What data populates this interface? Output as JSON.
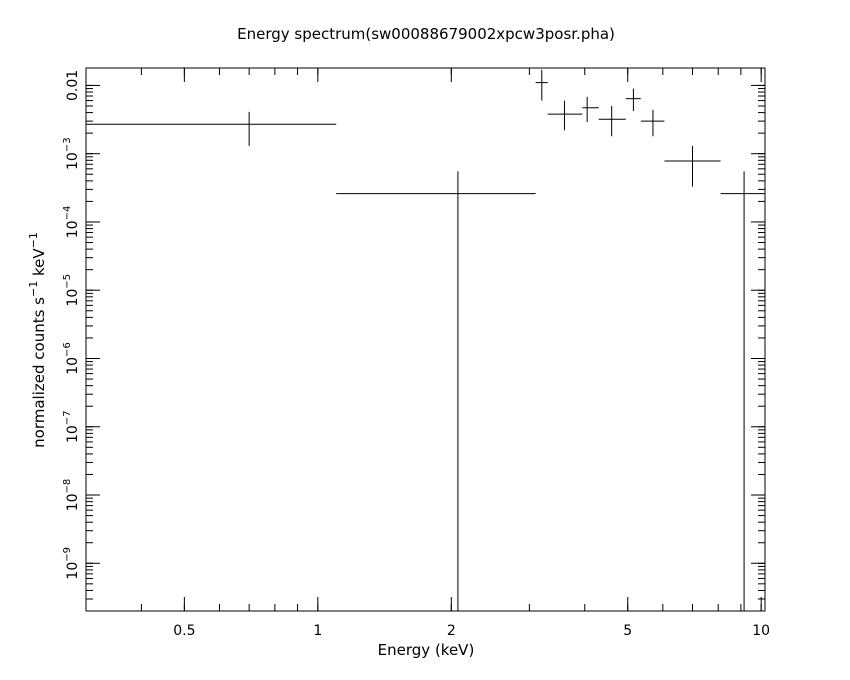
{
  "chart_data": {
    "type": "scatter",
    "title": "Energy spectrum(sw00088679002xpcw3posr.pha)",
    "xlabel": "Energy (keV)",
    "ylabel": {
      "main": "normalized counts s",
      "exp1": "−1",
      "mid": " keV",
      "exp2": "−1"
    },
    "x_scale": "log",
    "y_scale": "log",
    "xlim": [
      0.3,
      10.2
    ],
    "ylim": [
      2e-10,
      0.018
    ],
    "x_ticks": [
      {
        "value": 0.5,
        "label": "0.5"
      },
      {
        "value": 1,
        "label": "1"
      },
      {
        "value": 2,
        "label": "2"
      },
      {
        "value": 5,
        "label": "5"
      },
      {
        "value": 10,
        "label": "10"
      }
    ],
    "y_ticks": [
      {
        "value": 0.01,
        "base": "0.01",
        "exp": ""
      },
      {
        "value": 0.001,
        "base": "10",
        "exp": "−3"
      },
      {
        "value": 0.0001,
        "base": "10",
        "exp": "−4"
      },
      {
        "value": 1e-05,
        "base": "10",
        "exp": "−5"
      },
      {
        "value": 1e-06,
        "base": "10",
        "exp": "−6"
      },
      {
        "value": 1e-07,
        "base": "10",
        "exp": "−7"
      },
      {
        "value": 1e-08,
        "base": "10",
        "exp": "−8"
      },
      {
        "value": 1e-09,
        "base": "10",
        "exp": "−9"
      }
    ],
    "points": [
      {
        "x": 0.7,
        "xlo": 0.3,
        "xhi": 1.1,
        "y": 0.0027,
        "ylo": 0.0013,
        "yhi": 0.0041
      },
      {
        "x": 2.07,
        "xlo": 1.1,
        "xhi": 3.1,
        "y": 0.00026,
        "ylo": 2e-10,
        "yhi": 0.00055
      },
      {
        "x": 3.2,
        "xlo": 3.1,
        "xhi": 3.3,
        "y": 0.011,
        "ylo": 0.006,
        "yhi": 0.017
      },
      {
        "x": 3.6,
        "xlo": 3.3,
        "xhi": 3.95,
        "y": 0.0038,
        "ylo": 0.0022,
        "yhi": 0.006
      },
      {
        "x": 4.05,
        "xlo": 3.95,
        "xhi": 4.3,
        "y": 0.0047,
        "ylo": 0.0029,
        "yhi": 0.0068
      },
      {
        "x": 4.6,
        "xlo": 4.3,
        "xhi": 4.95,
        "y": 0.0032,
        "ylo": 0.0018,
        "yhi": 0.005
      },
      {
        "x": 5.15,
        "xlo": 4.95,
        "xhi": 5.35,
        "y": 0.0064,
        "ylo": 0.0042,
        "yhi": 0.009
      },
      {
        "x": 5.7,
        "xlo": 5.35,
        "xhi": 6.05,
        "y": 0.003,
        "ylo": 0.0018,
        "yhi": 0.0044
      },
      {
        "x": 7.0,
        "xlo": 6.05,
        "xhi": 8.1,
        "y": 0.00078,
        "ylo": 0.00033,
        "yhi": 0.0013
      },
      {
        "x": 9.15,
        "xlo": 8.1,
        "xhi": 10.2,
        "y": 0.00026,
        "ylo": 2e-10,
        "yhi": 0.00055
      }
    ],
    "grid": false,
    "legend": "none"
  }
}
